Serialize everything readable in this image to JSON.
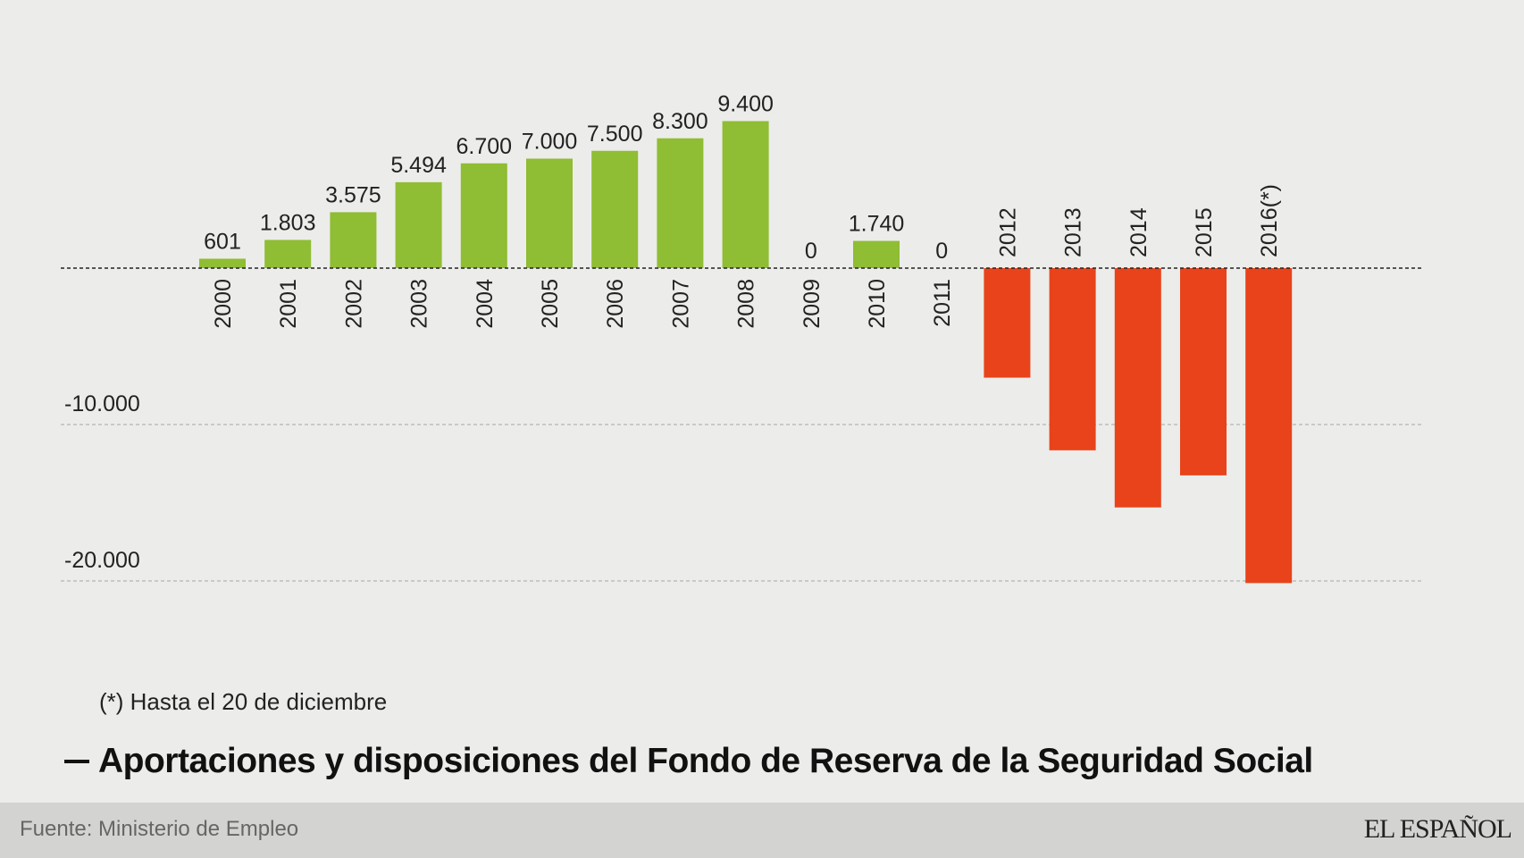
{
  "chart_data": {
    "type": "bar",
    "title": "Aportaciones y disposiciones del Fondo de Reserva de la Seguridad Social",
    "categories": [
      "2000",
      "2001",
      "2002",
      "2003",
      "2004",
      "2005",
      "2006",
      "2007",
      "2008",
      "2009",
      "2010",
      "2011",
      "2012",
      "2013",
      "2014",
      "2015",
      "2016(*)"
    ],
    "values": [
      601,
      1803,
      3575,
      5494,
      6700,
      7000,
      7500,
      8300,
      9400,
      0,
      1740,
      0,
      -7003,
      -11648,
      -15300,
      -13250,
      -20136
    ],
    "data_labels": [
      "601",
      "1.803",
      "3.575",
      "5.494",
      "6.700",
      "7.000",
      "7.500",
      "8.300",
      "9.400",
      "0",
      "1.740",
      "0",
      "",
      "",
      "",
      "",
      ""
    ],
    "ylim": [
      -20500,
      10500
    ],
    "y_ticks": [
      {
        "value": -10000,
        "label": "-10.000"
      },
      {
        "value": -20000,
        "label": "-20.000"
      }
    ],
    "grid": true,
    "colors": {
      "positive": "#8fbd33",
      "negative": "#e8431a",
      "baseline": "#222222",
      "gridline": "#bdbdbd"
    }
  },
  "footnote": "(*) Hasta el 20 de diciembre",
  "title": "Aportaciones y disposiciones del Fondo de Reserva de la Seguridad Social",
  "source": "Fuente: Ministerio de Empleo",
  "brand": "EL ESPAÑOL"
}
